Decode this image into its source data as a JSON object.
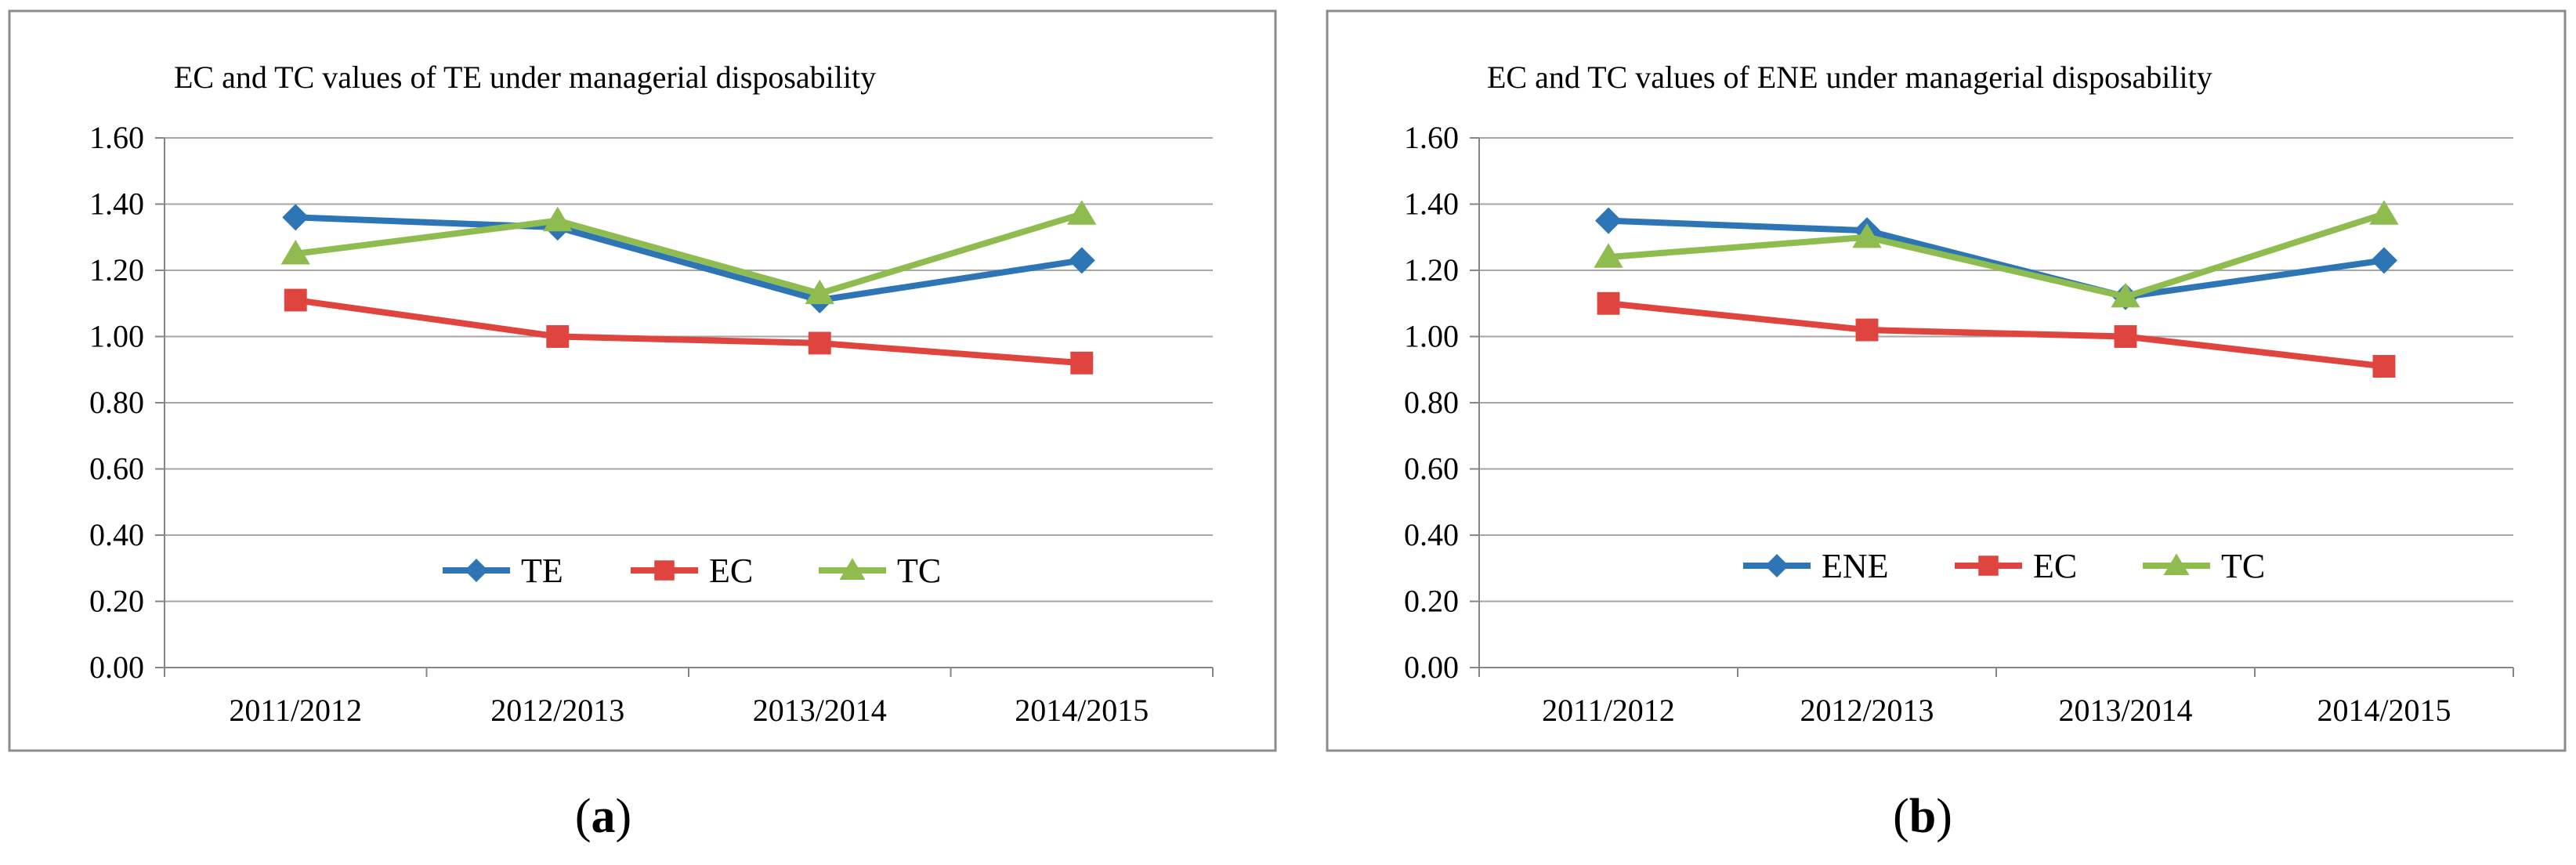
{
  "chart_data": [
    {
      "type": "line",
      "panel": "(a)",
      "panel_letter": "a",
      "title": "EC and TC values of TE under managerial disposability",
      "categories": [
        "2011/2012",
        "2012/2013",
        "2013/2014",
        "2014/2015"
      ],
      "y_ticks": [
        "0.00",
        "0.20",
        "0.40",
        "0.60",
        "0.80",
        "1.00",
        "1.20",
        "1.40",
        "1.60"
      ],
      "ylim": [
        0,
        1.6
      ],
      "grid": true,
      "legend_position": "center",
      "series": [
        {
          "name": "TE",
          "color": "#2e75b6",
          "marker": "diamond",
          "values": [
            1.36,
            1.33,
            1.11,
            1.23
          ]
        },
        {
          "name": "EC",
          "color": "#e0443e",
          "marker": "square",
          "values": [
            1.11,
            1.0,
            0.98,
            0.92
          ]
        },
        {
          "name": "TC",
          "color": "#8fbc4f",
          "marker": "triangle",
          "values": [
            1.25,
            1.35,
            1.13,
            1.37
          ]
        }
      ]
    },
    {
      "type": "line",
      "panel": "(b)",
      "panel_letter": "b",
      "title": "EC and TC values of ENE under managerial disposability",
      "categories": [
        "2011/2012",
        "2012/2013",
        "2013/2014",
        "2014/2015"
      ],
      "y_ticks": [
        "0.00",
        "0.20",
        "0.40",
        "0.60",
        "0.80",
        "1.00",
        "1.20",
        "1.40",
        "1.60"
      ],
      "ylim": [
        0,
        1.6
      ],
      "grid": true,
      "legend_position": "center",
      "series": [
        {
          "name": "ENE",
          "color": "#2e75b6",
          "marker": "diamond",
          "values": [
            1.35,
            1.32,
            1.12,
            1.23
          ]
        },
        {
          "name": "EC",
          "color": "#e0443e",
          "marker": "square",
          "values": [
            1.1,
            1.02,
            1.0,
            0.91
          ]
        },
        {
          "name": "TC",
          "color": "#8fbc4f",
          "marker": "triangle",
          "values": [
            1.24,
            1.3,
            1.12,
            1.37
          ]
        }
      ]
    }
  ]
}
